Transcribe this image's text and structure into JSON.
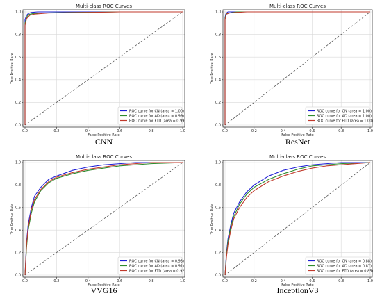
{
  "chart_data": [
    {
      "type": "line",
      "title": "Multi-class ROC Curves",
      "xlabel": "False Positive Rate",
      "ylabel": "True Positive Rate",
      "caption": "CNN",
      "xlim": [
        0,
        1.0
      ],
      "ylim": [
        0,
        1.0
      ],
      "xticks": [
        "0.0",
        "0.2",
        "0.4",
        "0.6",
        "0.8",
        "1.0"
      ],
      "yticks": [
        "0.0",
        "0.2",
        "0.4",
        "0.6",
        "0.8",
        "1.0"
      ],
      "grid": true,
      "legend_position": "bottom-right",
      "series": [
        {
          "name": "ROC curve for CN (area = 1.00)",
          "color": "#1f1fd6",
          "x": [
            0,
            0,
            0.01,
            0.02,
            0.04,
            0.08,
            0.2,
            0.6,
            1.0
          ],
          "y": [
            0,
            0.93,
            0.97,
            0.985,
            0.995,
            1.0,
            1.0,
            1.0,
            1.0
          ]
        },
        {
          "name": "ROC curve for AD (area = 0.99)",
          "color": "#2e8b2e",
          "x": [
            0,
            0,
            0.01,
            0.02,
            0.05,
            0.1,
            0.3,
            0.6,
            1.0
          ],
          "y": [
            0,
            0.9,
            0.95,
            0.975,
            0.985,
            0.99,
            0.995,
            1.0,
            1.0
          ]
        },
        {
          "name": "ROC curve for FTD (area = 0.99)",
          "color": "#c0392b",
          "x": [
            0,
            0,
            0.01,
            0.03,
            0.06,
            0.15,
            0.4,
            0.6,
            1.0
          ],
          "y": [
            0,
            0.88,
            0.94,
            0.97,
            0.98,
            0.99,
            0.995,
            1.0,
            1.0
          ]
        }
      ]
    },
    {
      "type": "line",
      "title": "Multi-class ROC Curves",
      "xlabel": "False Positive Rate",
      "ylabel": "True Positive Rate",
      "caption": "ResNet",
      "xlim": [
        0,
        1.0
      ],
      "ylim": [
        0,
        1.0
      ],
      "xticks": [
        "0.0",
        "0.2",
        "0.4",
        "0.6",
        "0.8",
        "1.0"
      ],
      "yticks": [
        "0.0",
        "0.2",
        "0.4",
        "0.6",
        "0.8",
        "1.0"
      ],
      "grid": true,
      "legend_position": "bottom-right",
      "series": [
        {
          "name": "ROC curve for CN (area = 1.00)",
          "color": "#1f1fd6",
          "x": [
            0,
            0,
            0.005,
            0.01,
            0.02,
            0.05,
            0.2,
            1.0
          ],
          "y": [
            0,
            0.95,
            0.98,
            0.99,
            1.0,
            1.0,
            1.0,
            1.0
          ]
        },
        {
          "name": "ROC curve for AD (area = 1.00)",
          "color": "#2e8b2e",
          "x": [
            0,
            0,
            0.005,
            0.01,
            0.03,
            0.08,
            0.2,
            1.0
          ],
          "y": [
            0,
            0.94,
            0.97,
            0.985,
            0.99,
            1.0,
            1.0,
            1.0
          ]
        },
        {
          "name": "ROC curve for FTD (area = 1.00)",
          "color": "#c0392b",
          "x": [
            0,
            0,
            0.005,
            0.01,
            0.03,
            0.08,
            0.15,
            1.0
          ],
          "y": [
            0,
            0.93,
            0.96,
            0.98,
            0.99,
            0.995,
            1.0,
            1.0
          ]
        }
      ]
    },
    {
      "type": "line",
      "title": "Multi-class ROC Curves",
      "xlabel": "False Positive Rate",
      "ylabel": "True Positive Rate",
      "caption": "VVG16",
      "xlim": [
        0,
        1.0
      ],
      "ylim": [
        0,
        1.0
      ],
      "xticks": [
        "0.0",
        "0.2",
        "0.4",
        "0.6",
        "0.8",
        "1.0"
      ],
      "yticks": [
        "0.0",
        "0.2",
        "0.4",
        "0.6",
        "0.8",
        "1.0"
      ],
      "grid": true,
      "legend_position": "bottom-right",
      "series": [
        {
          "name": "ROC curve for CN (area = 0.93)",
          "color": "#1f1fd6",
          "x": [
            0,
            0.01,
            0.02,
            0.04,
            0.06,
            0.1,
            0.15,
            0.2,
            0.3,
            0.4,
            0.5,
            0.6,
            0.7,
            0.8,
            1.0
          ],
          "y": [
            0,
            0.3,
            0.45,
            0.6,
            0.7,
            0.78,
            0.85,
            0.88,
            0.93,
            0.96,
            0.98,
            0.99,
            1.0,
            1.0,
            1.0
          ]
        },
        {
          "name": "ROC curve for AD (area = 0.91)",
          "color": "#2e8b2e",
          "x": [
            0,
            0.01,
            0.02,
            0.04,
            0.06,
            0.1,
            0.15,
            0.2,
            0.3,
            0.4,
            0.5,
            0.6,
            0.7,
            0.8,
            1.0
          ],
          "y": [
            0,
            0.25,
            0.4,
            0.55,
            0.65,
            0.75,
            0.82,
            0.86,
            0.9,
            0.93,
            0.95,
            0.97,
            0.98,
            0.99,
            1.0
          ]
        },
        {
          "name": "ROC curve for FTD (area = 0.92)",
          "color": "#c0392b",
          "x": [
            0,
            0.01,
            0.02,
            0.04,
            0.06,
            0.1,
            0.15,
            0.2,
            0.3,
            0.4,
            0.5,
            0.6,
            0.7,
            0.8,
            1.0
          ],
          "y": [
            0,
            0.28,
            0.42,
            0.58,
            0.67,
            0.76,
            0.83,
            0.87,
            0.91,
            0.94,
            0.96,
            0.98,
            0.99,
            1.0,
            1.0
          ]
        }
      ]
    },
    {
      "type": "line",
      "title": "Multi-class ROC Curves",
      "xlabel": "False Positive Rate",
      "ylabel": "True Positive Rate",
      "caption": "InceptionV3",
      "xlim": [
        0,
        1.0
      ],
      "ylim": [
        0,
        1.0
      ],
      "xticks": [
        "0.0",
        "0.2",
        "0.4",
        "0.6",
        "0.8",
        "1.0"
      ],
      "yticks": [
        "0.0",
        "0.2",
        "0.4",
        "0.6",
        "0.8",
        "1.0"
      ],
      "grid": true,
      "legend_position": "bottom-right",
      "series": [
        {
          "name": "ROC curve for CN (area = 0.88)",
          "color": "#1f1fd6",
          "x": [
            0,
            0.01,
            0.02,
            0.04,
            0.06,
            0.1,
            0.15,
            0.2,
            0.3,
            0.4,
            0.5,
            0.6,
            0.7,
            0.8,
            1.0
          ],
          "y": [
            0,
            0.2,
            0.32,
            0.45,
            0.55,
            0.65,
            0.74,
            0.8,
            0.88,
            0.93,
            0.96,
            0.98,
            0.99,
            1.0,
            1.0
          ]
        },
        {
          "name": "ROC curve for AD (area = 0.87)",
          "color": "#2e8b2e",
          "x": [
            0,
            0.01,
            0.02,
            0.04,
            0.06,
            0.1,
            0.15,
            0.2,
            0.3,
            0.4,
            0.5,
            0.6,
            0.7,
            0.8,
            1.0
          ],
          "y": [
            0,
            0.18,
            0.3,
            0.43,
            0.52,
            0.63,
            0.72,
            0.78,
            0.85,
            0.9,
            0.94,
            0.97,
            0.98,
            0.99,
            1.0
          ]
        },
        {
          "name": "ROC curve for FTD (area = 0.85)",
          "color": "#c0392b",
          "x": [
            0,
            0.01,
            0.02,
            0.04,
            0.06,
            0.1,
            0.15,
            0.2,
            0.3,
            0.4,
            0.5,
            0.6,
            0.7,
            0.8,
            1.0
          ],
          "y": [
            0,
            0.16,
            0.27,
            0.4,
            0.5,
            0.6,
            0.69,
            0.75,
            0.83,
            0.88,
            0.92,
            0.95,
            0.97,
            0.98,
            1.0
          ]
        }
      ]
    }
  ]
}
